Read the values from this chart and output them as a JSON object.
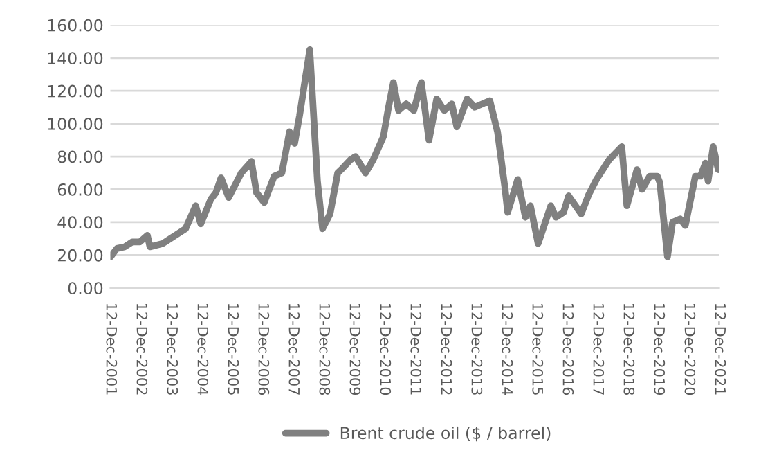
{
  "chart_data": {
    "type": "line",
    "x": [
      "2001-12-15",
      "2002-03",
      "2002-06",
      "2002-09",
      "2002-12",
      "2003-03",
      "2003-04",
      "2003-09",
      "2003-12",
      "2004-06",
      "2004-10",
      "2004-12",
      "2005-04",
      "2005-06",
      "2005-08",
      "2005-11",
      "2006-04",
      "2006-08",
      "2006-10",
      "2007-01",
      "2007-05",
      "2007-08",
      "2007-11",
      "2008-01",
      "2008-03",
      "2008-07",
      "2008-10",
      "2008-12",
      "2009-03",
      "2009-06",
      "2009-08",
      "2009-11",
      "2010-01",
      "2010-05",
      "2010-08",
      "2010-12",
      "2011-02",
      "2011-04",
      "2011-06",
      "2011-09",
      "2011-12",
      "2012-03",
      "2012-06",
      "2012-09",
      "2012-12",
      "2013-03",
      "2013-05",
      "2013-09",
      "2013-12",
      "2014-06",
      "2014-09",
      "2014-12",
      "2015-01",
      "2015-05",
      "2015-08",
      "2015-10",
      "2016-01",
      "2016-06",
      "2016-08",
      "2016-11",
      "2017-01",
      "2017-06",
      "2017-09",
      "2017-12",
      "2018-05",
      "2018-10",
      "2018-12",
      "2019-04",
      "2019-06",
      "2019-09",
      "2019-12",
      "2020-01",
      "2020-04",
      "2020-06",
      "2020-09",
      "2020-11",
      "2021-03",
      "2021-05",
      "2021-07",
      "2021-08",
      "2021-10",
      "2021-12"
    ],
    "series": [
      {
        "name": "Brent crude oil ($ / barrel)",
        "color": "#808080",
        "values": [
          19,
          24,
          25,
          28,
          28,
          32,
          25,
          27,
          30,
          36,
          50,
          39,
          54,
          58,
          67,
          55,
          70,
          77,
          58,
          52,
          68,
          70,
          95,
          88,
          105,
          145,
          65,
          36,
          45,
          70,
          73,
          78,
          80,
          70,
          78,
          92,
          110,
          125,
          108,
          112,
          108,
          125,
          90,
          115,
          108,
          112,
          98,
          115,
          110,
          114,
          95,
          60,
          46,
          66,
          43,
          50,
          27,
          50,
          43,
          46,
          56,
          45,
          57,
          66,
          78,
          86,
          50,
          72,
          60,
          68,
          68,
          64,
          19,
          40,
          42,
          38,
          68,
          68,
          76,
          65,
          86,
          72
        ]
      }
    ],
    "xlim": [
      "2001-12-12",
      "2021-12-12"
    ],
    "xticks": [
      {
        "value": "2001-12-12",
        "label": "12-Dec-2001"
      },
      {
        "value": "2002-12-12",
        "label": "12-Dec-2002"
      },
      {
        "value": "2003-12-12",
        "label": "12-Dec-2003"
      },
      {
        "value": "2004-12-12",
        "label": "12-Dec-2004"
      },
      {
        "value": "2005-12-12",
        "label": "12-Dec-2005"
      },
      {
        "value": "2006-12-12",
        "label": "12-Dec-2006"
      },
      {
        "value": "2007-12-12",
        "label": "12-Dec-2007"
      },
      {
        "value": "2008-12-12",
        "label": "12-Dec-2008"
      },
      {
        "value": "2009-12-12",
        "label": "12-Dec-2009"
      },
      {
        "value": "2010-12-12",
        "label": "12-Dec-2010"
      },
      {
        "value": "2011-12-12",
        "label": "12-Dec-2011"
      },
      {
        "value": "2012-12-12",
        "label": "12-Dec-2012"
      },
      {
        "value": "2013-12-12",
        "label": "12-Dec-2013"
      },
      {
        "value": "2014-12-12",
        "label": "12-Dec-2014"
      },
      {
        "value": "2015-12-12",
        "label": "12-Dec-2015"
      },
      {
        "value": "2016-12-12",
        "label": "12-Dec-2016"
      },
      {
        "value": "2017-12-12",
        "label": "12-Dec-2017"
      },
      {
        "value": "2018-12-12",
        "label": "12-Dec-2018"
      },
      {
        "value": "2019-12-12",
        "label": "12-Dec-2019"
      },
      {
        "value": "2020-12-12",
        "label": "12-Dec-2020"
      },
      {
        "value": "2021-12-12",
        "label": "12-Dec-2021"
      }
    ],
    "ylim": [
      0,
      160
    ],
    "yticks": [
      {
        "value": 0,
        "label": "0.00"
      },
      {
        "value": 20,
        "label": "20.00"
      },
      {
        "value": 40,
        "label": "40.00"
      },
      {
        "value": 60,
        "label": "60.00"
      },
      {
        "value": 80,
        "label": "80.00"
      },
      {
        "value": 100,
        "label": "100.00"
      },
      {
        "value": 120,
        "label": "120.00"
      },
      {
        "value": 140,
        "label": "140.00"
      },
      {
        "value": 160,
        "label": "160.00"
      }
    ],
    "grid": "y",
    "legend": "bottom",
    "line_style": "solid"
  }
}
